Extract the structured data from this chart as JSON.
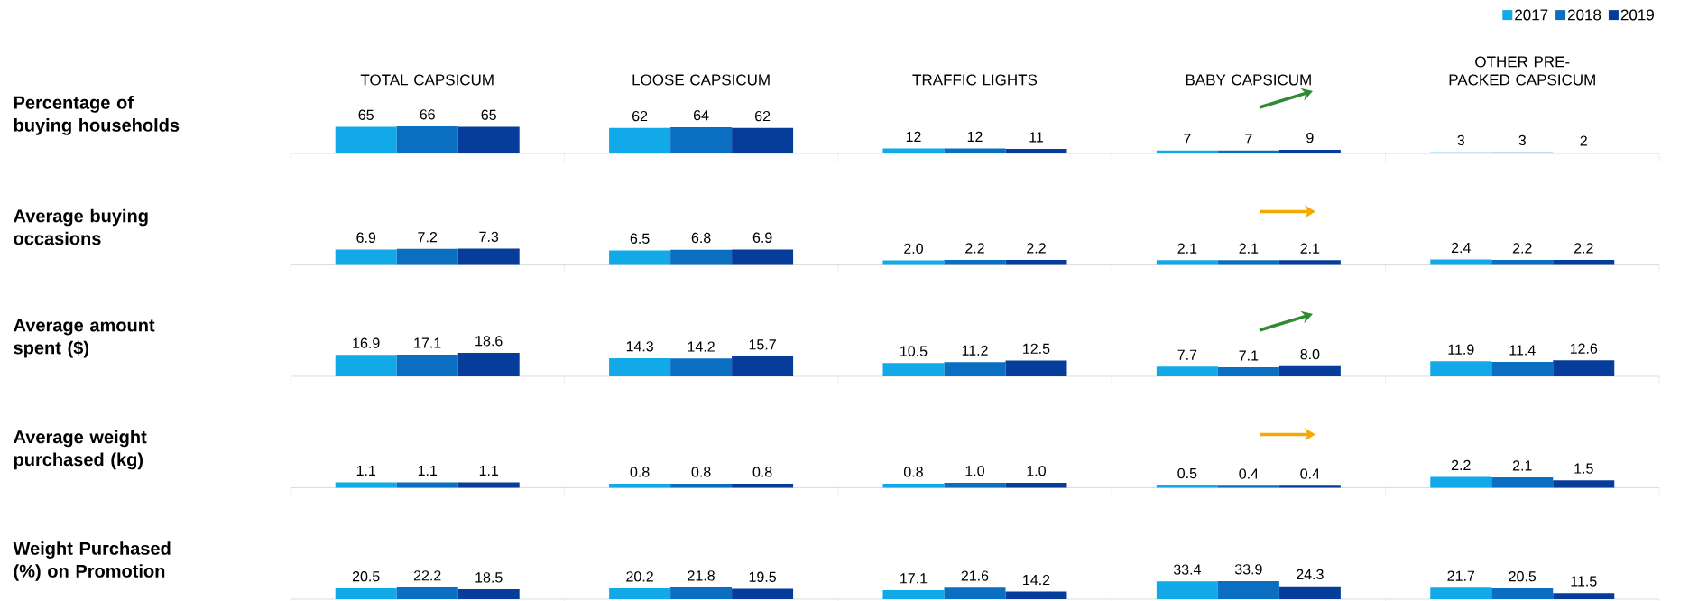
{
  "chart_data": [
    {
      "type": "bar",
      "ylabel": "Percentage of buying households",
      "categories": [
        "TOTAL CAPSICUM",
        "LOOSE CAPSICUM",
        "TRAFFIC LIGHTS",
        "BABY CAPSICUM",
        "OTHER PRE-PACKED CAPSICUM"
      ],
      "tick_labels": "x",
      "legend": "top right",
      "series": [
        {
          "name": "2017",
          "color": "#12a9e8",
          "values": [
            65,
            62,
            12,
            7,
            3
          ],
          "value_labels": [
            "65",
            "62",
            "12",
            "7",
            "3"
          ]
        },
        {
          "name": "2018",
          "color": "#0a6fc0",
          "values": [
            66,
            64,
            12,
            7,
            3
          ],
          "value_labels": [
            "66",
            "64",
            "12",
            "7",
            "3"
          ]
        },
        {
          "name": "2019",
          "color": "#063c9a",
          "values": [
            65,
            62,
            11,
            9,
            2
          ],
          "value_labels": [
            "65",
            "62",
            "11",
            "9",
            "2"
          ]
        }
      ]
    },
    {
      "type": "bar",
      "ylabel": "Average buying occasions",
      "tick_labels": false,
      "series": [
        {
          "color": "#12a9e8",
          "values": [
            6.9,
            6.5,
            2.0,
            2.1,
            2.4
          ],
          "value_labels": [
            "6.9",
            "6.5",
            "2.0",
            "2.1",
            "2.4"
          ]
        },
        {
          "color": "#0a6fc0",
          "values": [
            7.2,
            6.8,
            2.2,
            2.1,
            2.2
          ],
          "value_labels": [
            "7.2",
            "6.8",
            "2.2",
            "2.1",
            "2.2"
          ]
        },
        {
          "color": "#063c9a",
          "values": [
            7.3,
            6.9,
            2.2,
            2.1,
            2.2
          ],
          "value_labels": [
            "7.3",
            "6.9",
            "2.2",
            "2.1",
            "2.2"
          ]
        }
      ]
    },
    {
      "type": "bar",
      "ylabel": "Average amount spent ($)",
      "tick_labels": false,
      "series": [
        {
          "color": "#12a9e8",
          "values": [
            16.9,
            14.3,
            10.5,
            7.7,
            11.9
          ],
          "value_labels": [
            "16.9",
            "14.3",
            "10.5",
            "7.7",
            "11.9"
          ]
        },
        {
          "color": "#0a6fc0",
          "values": [
            17.1,
            14.2,
            11.2,
            7.1,
            11.4
          ],
          "value_labels": [
            "17.1",
            "14.2",
            "11.2",
            "7.1",
            "11.4"
          ]
        },
        {
          "color": "#063c9a",
          "values": [
            18.6,
            15.7,
            12.5,
            8.0,
            12.6
          ],
          "value_labels": [
            "18.6",
            "15.7",
            "12.5",
            "8.0",
            "12.6"
          ]
        }
      ]
    },
    {
      "type": "bar",
      "ylabel": "Average weight purchased (kg)",
      "tick_labels": false,
      "series": [
        {
          "color": "#12a9e8",
          "values": [
            1.1,
            0.8,
            0.8,
            0.5,
            2.2
          ],
          "value_labels": [
            "1.1",
            "0.8",
            "0.8",
            "0.5",
            "2.2"
          ]
        },
        {
          "color": "#0a6fc0",
          "values": [
            1.1,
            0.8,
            1.0,
            0.4,
            2.1
          ],
          "value_labels": [
            "1.1",
            "0.8",
            "1.0",
            "0.4",
            "2.1"
          ]
        },
        {
          "color": "#063c9a",
          "values": [
            1.1,
            0.8,
            1.0,
            0.4,
            1.5
          ],
          "value_labels": [
            "1.1",
            "0.8",
            "1.0",
            "0.4",
            "1.5"
          ]
        }
      ]
    },
    {
      "type": "bar",
      "ylabel": "Weight Purchased (%) on Promotion",
      "tick_labels": false,
      "series": [
        {
          "color": "#12a9e8",
          "values": [
            20.5,
            20.2,
            17.1,
            33.4,
            21.7
          ],
          "value_labels": [
            "20.5",
            "20.2",
            "17.1",
            "33.4",
            "21.7"
          ]
        },
        {
          "color": "#0a6fc0",
          "values": [
            22.2,
            21.8,
            21.6,
            33.9,
            20.5
          ],
          "value_labels": [
            "22.2",
            "21.8",
            "21.6",
            "33.9",
            "20.5"
          ]
        },
        {
          "color": "#063c9a",
          "values": [
            18.5,
            19.5,
            14.2,
            24.3,
            11.5
          ],
          "value_labels": [
            "18.5",
            "19.5",
            "14.2",
            "24.3",
            "11.5"
          ]
        }
      ]
    }
  ]
}
